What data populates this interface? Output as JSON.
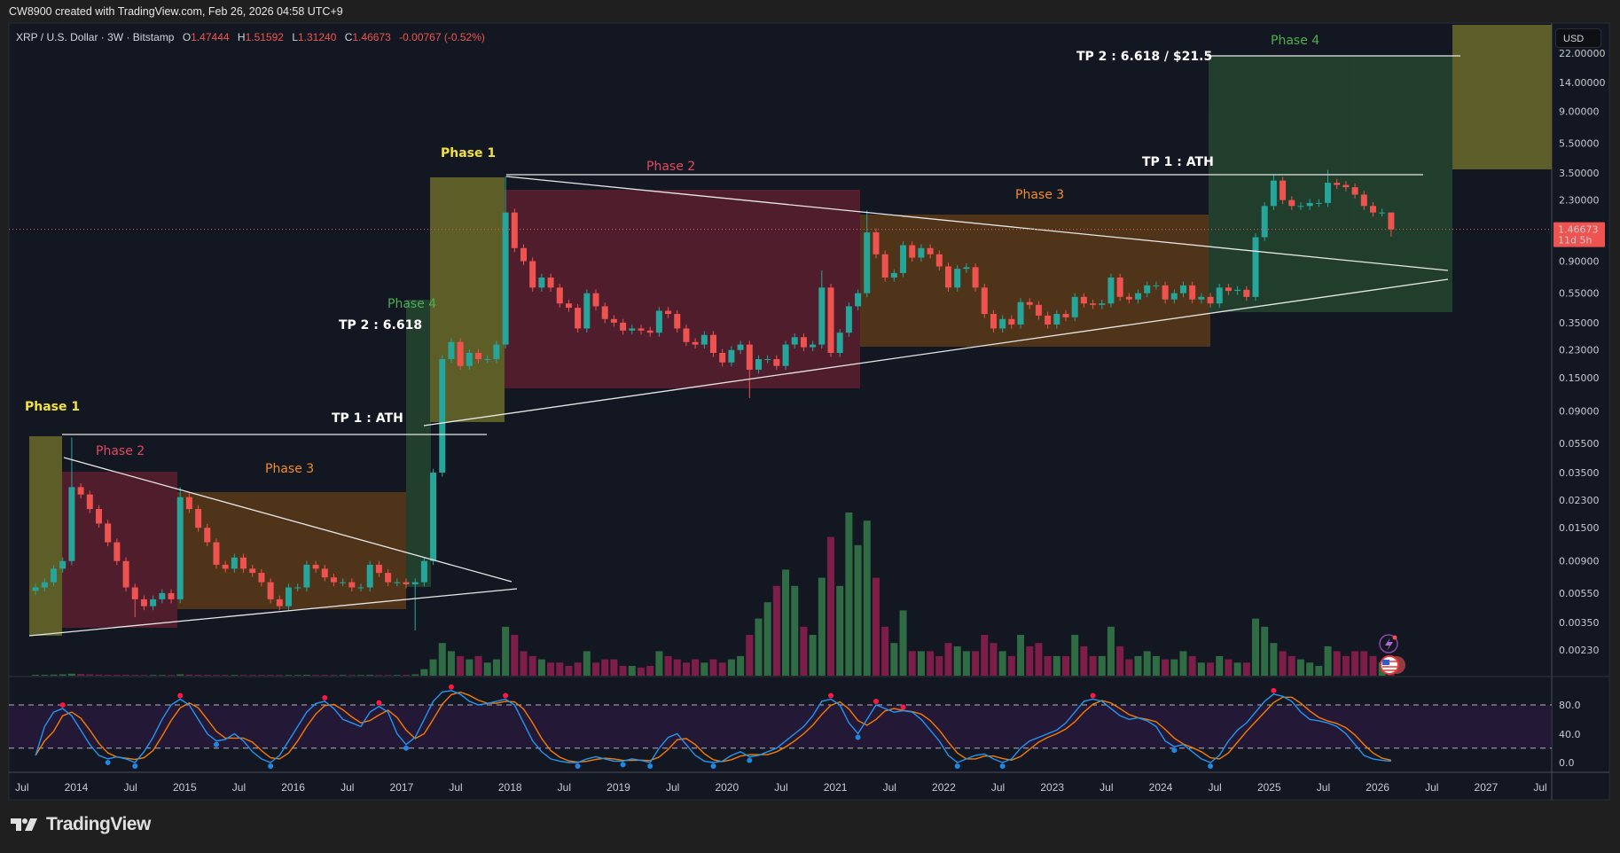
{
  "header": {
    "attribution": "CW8900 created with TradingView.com, Feb 26, 2026 04:58 UTC+9"
  },
  "legend": {
    "symbol": "XRP / U.S. Dollar · 3W · Bitstamp",
    "open_label": "O",
    "open": "1.47444",
    "high_label": "H",
    "high": "1.51592",
    "low_label": "L",
    "low": "1.31240",
    "close_label": "C",
    "close": "1.46673",
    "change": "-0.00767 (-0.52%)"
  },
  "price_axis": {
    "currency_button": "USD",
    "ticks": [
      "22.00000",
      "14.00000",
      "9.00000",
      "5.50000",
      "3.50000",
      "2.30000",
      "0.90000",
      "0.55000",
      "0.35000",
      "0.23000",
      "0.15000",
      "0.09000",
      "0.05500",
      "0.03500",
      "0.02300",
      "0.01500",
      "0.00900",
      "0.00550",
      "0.00350",
      "0.00230"
    ],
    "current_price": "1.46673",
    "countdown": "11d 5h"
  },
  "oscillator_axis": {
    "ticks": [
      "80.0",
      "40.0",
      "0.0"
    ],
    "upper_band": 80,
    "lower_band": 20
  },
  "time_axis": {
    "ticks": [
      {
        "label": "Jul",
        "date": "2013-07"
      },
      {
        "label": "2014",
        "date": "2014-01"
      },
      {
        "label": "Jul",
        "date": "2014-07"
      },
      {
        "label": "2015",
        "date": "2015-01"
      },
      {
        "label": "Jul",
        "date": "2015-07"
      },
      {
        "label": "2016",
        "date": "2016-01"
      },
      {
        "label": "Jul",
        "date": "2016-07"
      },
      {
        "label": "2017",
        "date": "2017-01"
      },
      {
        "label": "Jul",
        "date": "2017-07"
      },
      {
        "label": "2018",
        "date": "2018-01"
      },
      {
        "label": "Jul",
        "date": "2018-07"
      },
      {
        "label": "2019",
        "date": "2019-01"
      },
      {
        "label": "Jul",
        "date": "2019-07"
      },
      {
        "label": "2020",
        "date": "2020-01"
      },
      {
        "label": "Jul",
        "date": "2020-07"
      },
      {
        "label": "2021",
        "date": "2021-01"
      },
      {
        "label": "Jul",
        "date": "2021-07"
      },
      {
        "label": "2022",
        "date": "2022-01"
      },
      {
        "label": "Jul",
        "date": "2022-07"
      },
      {
        "label": "2023",
        "date": "2023-01"
      },
      {
        "label": "Jul",
        "date": "2023-07"
      },
      {
        "label": "2024",
        "date": "2024-01"
      },
      {
        "label": "Jul",
        "date": "2024-07"
      },
      {
        "label": "2025",
        "date": "2025-01"
      },
      {
        "label": "Jul",
        "date": "2025-07"
      },
      {
        "label": "2026",
        "date": "2026-01"
      },
      {
        "label": "Jul",
        "date": "2026-07"
      },
      {
        "label": "2027",
        "date": "2027-01"
      },
      {
        "label": "Jul",
        "date": "2027-07"
      }
    ]
  },
  "annotations": {
    "left": {
      "phase1": "Phase 1",
      "phase2": "Phase 2",
      "phase3": "Phase 3",
      "phase4": "Phase 4",
      "tp1": "TP 1 : ATH",
      "tp2": "TP 2 : 6.618"
    },
    "right": {
      "phase1": "Phase 1",
      "phase2": "Phase 2",
      "phase3": "Phase 3",
      "phase4": "Phase 4",
      "tp1": "TP 1 : ATH",
      "tp2": "TP 2 : 6.618 / $21.5"
    }
  },
  "colors": {
    "up": "#26a69a",
    "down": "#ef5350",
    "vol_up": "#2f6b43",
    "vol_down": "#7d1e48",
    "osc_k": "#2196f3",
    "osc_d": "#f57c00",
    "phase1": "#6b6a2a",
    "phase2": "#5a1f2e",
    "phase3": "#5a3a18",
    "phase4": "#25452f"
  },
  "footer": {
    "brand": "TradingView"
  },
  "chart_data": {
    "type": "candlestick",
    "symbol": "XRP / U.S. Dollar",
    "interval": "3W",
    "y_scale": "log",
    "grid": false,
    "bar_fields": [
      "date",
      "close",
      "volume_relative",
      "high",
      "low"
    ],
    "bars": [
      [
        "2013-08",
        0.006,
        0.5
      ],
      [
        "2013-09",
        0.0065,
        0.5
      ],
      [
        "2013-10",
        0.008,
        0.6
      ],
      [
        "2013-11",
        0.009,
        0.8
      ],
      [
        "2013-12",
        0.028,
        1.2,
        0.06
      ],
      [
        "2014-01",
        0.025,
        1
      ],
      [
        "2014-02",
        0.02,
        0.8
      ],
      [
        "2014-03",
        0.016,
        0.6
      ],
      [
        "2014-04",
        0.012,
        0.5
      ],
      [
        "2014-05",
        0.009,
        0.5
      ],
      [
        "2014-06",
        0.006,
        0.5
      ],
      [
        "2014-07",
        0.005,
        0.4,
        null,
        0.0038
      ],
      [
        "2014-08",
        0.0045,
        0.4
      ],
      [
        "2014-09",
        0.005,
        0.4
      ],
      [
        "2014-10",
        0.0055,
        0.4
      ],
      [
        "2014-11",
        0.005,
        0.4
      ],
      [
        "2014-12",
        0.024,
        0.8,
        0.028
      ],
      [
        "2015-01",
        0.02,
        0.6
      ],
      [
        "2015-02",
        0.015,
        0.5
      ],
      [
        "2015-03",
        0.012,
        0.5
      ],
      [
        "2015-04",
        0.0085,
        0.4
      ],
      [
        "2015-05",
        0.008,
        0.4
      ],
      [
        "2015-06",
        0.0095,
        0.4
      ],
      [
        "2015-07",
        0.008,
        0.4
      ],
      [
        "2015-08",
        0.0075,
        0.4
      ],
      [
        "2015-09",
        0.0065,
        0.4
      ],
      [
        "2015-10",
        0.005,
        0.4
      ],
      [
        "2015-11",
        0.0045,
        0.4
      ],
      [
        "2015-12",
        0.006,
        0.4
      ],
      [
        "2016-01",
        0.006,
        0.4
      ],
      [
        "2016-02",
        0.0085,
        0.5
      ],
      [
        "2016-03",
        0.008,
        0.4
      ],
      [
        "2016-04",
        0.007,
        0.4
      ],
      [
        "2016-05",
        0.0065,
        0.4
      ],
      [
        "2016-06",
        0.0065,
        0.4
      ],
      [
        "2016-07",
        0.006,
        0.4
      ],
      [
        "2016-08",
        0.006,
        0.4
      ],
      [
        "2016-09",
        0.0085,
        0.5
      ],
      [
        "2016-10",
        0.0075,
        0.4
      ],
      [
        "2016-11",
        0.0065,
        0.4
      ],
      [
        "2016-12",
        0.0065,
        0.4
      ],
      [
        "2017-01",
        0.0063,
        0.5
      ],
      [
        "2017-02",
        0.0065,
        0.8,
        null,
        0.0031
      ],
      [
        "2017-03",
        0.009,
        4
      ],
      [
        "2017-04",
        0.035,
        10
      ],
      [
        "2017-05",
        0.2,
        20
      ],
      [
        "2017-06",
        0.26,
        15
      ],
      [
        "2017-07",
        0.18,
        12
      ],
      [
        "2017-08",
        0.22,
        10
      ],
      [
        "2017-09",
        0.2,
        12
      ],
      [
        "2017-10",
        0.2,
        8
      ],
      [
        "2017-11",
        0.25,
        10
      ],
      [
        "2017-12",
        1.9,
        30,
        3.31
      ],
      [
        "2018-01",
        1.1,
        25
      ],
      [
        "2018-02",
        0.9,
        15
      ],
      [
        "2018-03",
        0.6,
        12
      ],
      [
        "2018-04",
        0.7,
        10
      ],
      [
        "2018-05",
        0.6,
        8
      ],
      [
        "2018-06",
        0.47,
        8
      ],
      [
        "2018-07",
        0.44,
        6
      ],
      [
        "2018-08",
        0.32,
        8
      ],
      [
        "2018-09",
        0.55,
        15
      ],
      [
        "2018-10",
        0.45,
        8
      ],
      [
        "2018-11",
        0.37,
        10
      ],
      [
        "2018-12",
        0.35,
        10
      ],
      [
        "2019-01",
        0.31,
        6
      ],
      [
        "2019-02",
        0.32,
        6
      ],
      [
        "2019-03",
        0.31,
        5
      ],
      [
        "2019-04",
        0.3,
        6
      ],
      [
        "2019-05",
        0.42,
        15
      ],
      [
        "2019-06",
        0.4,
        12
      ],
      [
        "2019-07",
        0.32,
        10
      ],
      [
        "2019-08",
        0.26,
        8
      ],
      [
        "2019-09",
        0.25,
        10
      ],
      [
        "2019-10",
        0.29,
        8
      ],
      [
        "2019-11",
        0.22,
        10
      ],
      [
        "2019-12",
        0.19,
        8
      ],
      [
        "2020-01",
        0.23,
        10
      ],
      [
        "2020-02",
        0.25,
        12
      ],
      [
        "2020-03",
        0.17,
        25,
        null,
        0.11
      ],
      [
        "2020-04",
        0.2,
        35
      ],
      [
        "2020-05",
        0.2,
        45
      ],
      [
        "2020-06",
        0.18,
        55
      ],
      [
        "2020-07",
        0.25,
        65
      ],
      [
        "2020-08",
        0.28,
        55
      ],
      [
        "2020-09",
        0.24,
        30
      ],
      [
        "2020-10",
        0.25,
        25
      ],
      [
        "2020-11",
        0.6,
        60,
        0.78
      ],
      [
        "2020-12",
        0.22,
        85
      ],
      [
        "2021-01",
        0.3,
        55
      ],
      [
        "2021-02",
        0.45,
        100
      ],
      [
        "2021-03",
        0.55,
        80
      ],
      [
        "2021-04",
        1.4,
        95,
        1.96
      ],
      [
        "2021-05",
        1.0,
        60
      ],
      [
        "2021-06",
        0.7,
        30
      ],
      [
        "2021-07",
        0.75,
        20
      ],
      [
        "2021-08",
        1.15,
        40
      ],
      [
        "2021-09",
        0.95,
        15
      ],
      [
        "2021-10",
        1.1,
        15
      ],
      [
        "2021-11",
        1.0,
        15
      ],
      [
        "2021-12",
        0.83,
        12
      ],
      [
        "2022-01",
        0.6,
        20
      ],
      [
        "2022-02",
        0.8,
        18
      ],
      [
        "2022-03",
        0.82,
        15
      ],
      [
        "2022-04",
        0.6,
        15
      ],
      [
        "2022-05",
        0.4,
        25
      ],
      [
        "2022-06",
        0.32,
        20
      ],
      [
        "2022-07",
        0.37,
        15
      ],
      [
        "2022-08",
        0.34,
        12
      ],
      [
        "2022-09",
        0.48,
        25
      ],
      [
        "2022-10",
        0.46,
        18
      ],
      [
        "2022-11",
        0.39,
        20
      ],
      [
        "2022-12",
        0.34,
        12
      ],
      [
        "2023-01",
        0.4,
        12
      ],
      [
        "2023-02",
        0.38,
        12
      ],
      [
        "2023-03",
        0.52,
        25
      ],
      [
        "2023-04",
        0.47,
        18
      ],
      [
        "2023-05",
        0.46,
        12
      ],
      [
        "2023-06",
        0.47,
        12
      ],
      [
        "2023-07",
        0.7,
        30
      ],
      [
        "2023-08",
        0.52,
        18
      ],
      [
        "2023-09",
        0.5,
        10
      ],
      [
        "2023-10",
        0.55,
        12
      ],
      [
        "2023-11",
        0.62,
        15
      ],
      [
        "2023-12",
        0.62,
        12
      ],
      [
        "2024-01",
        0.5,
        10
      ],
      [
        "2024-02",
        0.55,
        10
      ],
      [
        "2024-03",
        0.62,
        15
      ],
      [
        "2024-04",
        0.5,
        12
      ],
      [
        "2024-05",
        0.52,
        8
      ],
      [
        "2024-06",
        0.47,
        8
      ],
      [
        "2024-07",
        0.6,
        12
      ],
      [
        "2024-08",
        0.57,
        10
      ],
      [
        "2024-09",
        0.58,
        8
      ],
      [
        "2024-10",
        0.52,
        8
      ],
      [
        "2024-11",
        1.3,
        35
      ],
      [
        "2024-12",
        2.1,
        30
      ],
      [
        "2025-01",
        3.1,
        20,
        3.4
      ],
      [
        "2025-02",
        2.3,
        15
      ],
      [
        "2025-03",
        2.1,
        12
      ],
      [
        "2025-04",
        2.1,
        10
      ],
      [
        "2025-05",
        2.2,
        8
      ],
      [
        "2025-06",
        2.2,
        6
      ],
      [
        "2025-07",
        3.0,
        18,
        3.66
      ],
      [
        "2025-08",
        2.9,
        15
      ],
      [
        "2025-09",
        2.8,
        12
      ],
      [
        "2025-10",
        2.5,
        15
      ],
      [
        "2025-11",
        2.1,
        15
      ],
      [
        "2025-12",
        1.9,
        12
      ],
      [
        "2026-01",
        1.9,
        8
      ],
      [
        "2026-02",
        1.46673,
        10,
        1.51592,
        1.3124
      ]
    ],
    "oscillator": {
      "k_values": [
        10,
        50,
        70,
        75,
        65,
        45,
        25,
        10,
        5,
        8,
        5,
        0,
        15,
        35,
        60,
        80,
        88,
        80,
        60,
        40,
        30,
        32,
        40,
        30,
        15,
        5,
        0,
        10,
        30,
        50,
        70,
        82,
        85,
        75,
        60,
        55,
        50,
        70,
        78,
        70,
        40,
        25,
        35,
        60,
        85,
        98,
        100,
        95,
        85,
        80,
        82,
        85,
        88,
        80,
        55,
        30,
        15,
        5,
        2,
        0,
        0,
        5,
        8,
        5,
        2,
        2,
        5,
        3,
        0,
        20,
        35,
        40,
        25,
        10,
        2,
        0,
        2,
        10,
        15,
        8,
        10,
        15,
        20,
        30,
        40,
        50,
        65,
        85,
        88,
        80,
        55,
        40,
        60,
        80,
        75,
        70,
        72,
        70,
        60,
        45,
        30,
        10,
        0,
        5,
        10,
        12,
        5,
        0,
        5,
        20,
        30,
        35,
        40,
        45,
        55,
        70,
        85,
        88,
        85,
        75,
        65,
        60,
        62,
        58,
        50,
        30,
        22,
        25,
        15,
        5,
        0,
        10,
        30,
        45,
        55,
        70,
        85,
        95,
        92,
        85,
        70,
        60,
        58,
        55,
        50,
        40,
        25,
        10,
        5,
        3,
        2
      ]
    }
  }
}
